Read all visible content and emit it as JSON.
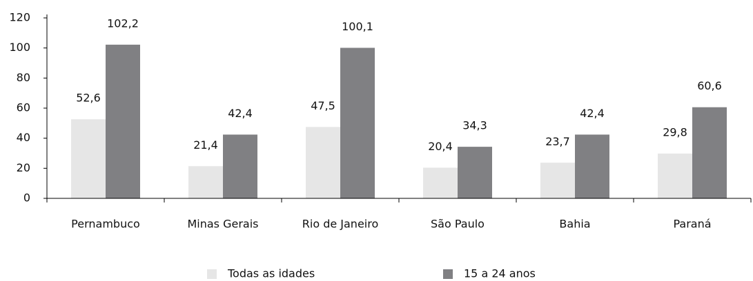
{
  "chart_data": {
    "type": "bar",
    "categories": [
      "Pernambuco",
      "Minas Gerais",
      "Rio de Janeiro",
      "São Paulo",
      "Bahia",
      "Paraná"
    ],
    "series": [
      {
        "name": "Todas as idades",
        "color": "#e6e6e6",
        "values": [
          52.6,
          21.4,
          47.5,
          20.4,
          23.7,
          29.8
        ],
        "value_labels": [
          "52,6",
          "21,4",
          "47,5",
          "20,4",
          "23,7",
          "29,8"
        ]
      },
      {
        "name": "15 a 24 anos",
        "color": "#808083",
        "values": [
          102.2,
          42.4,
          100.1,
          34.3,
          42.4,
          60.6
        ],
        "value_labels": [
          "102,2",
          "42,4",
          "100,1",
          "34,3",
          "42,4",
          "60,6"
        ]
      }
    ],
    "ylim": [
      0,
      120
    ],
    "yticks": [
      0,
      20,
      40,
      60,
      80,
      100,
      120
    ],
    "grid": false,
    "legend": "bottom"
  }
}
